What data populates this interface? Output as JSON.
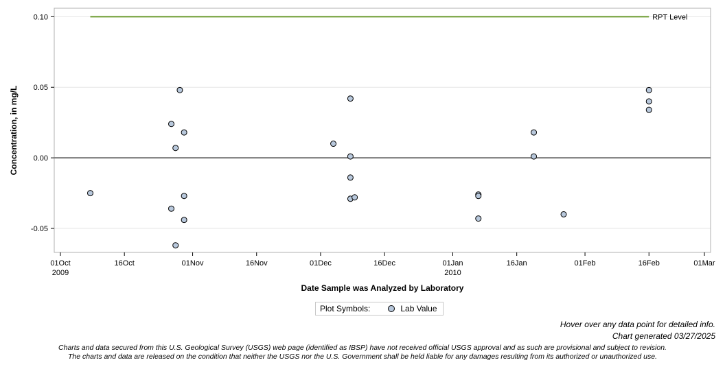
{
  "chart_data": {
    "type": "scatter",
    "xlabel": "Date Sample was Analyzed by Laboratory",
    "ylabel": "Concentration, in mg/L",
    "xlim": [
      "2009-10-01",
      "2010-03-01"
    ],
    "ylim": [
      -0.067,
      0.106
    ],
    "x_ticks": [
      {
        "date": "2009-10-01",
        "label": "01Oct",
        "sublabel": "2009"
      },
      {
        "date": "2009-10-16",
        "label": "16Oct",
        "sublabel": ""
      },
      {
        "date": "2009-11-01",
        "label": "01Nov",
        "sublabel": ""
      },
      {
        "date": "2009-11-16",
        "label": "16Nov",
        "sublabel": ""
      },
      {
        "date": "2009-12-01",
        "label": "01Dec",
        "sublabel": ""
      },
      {
        "date": "2009-12-16",
        "label": "16Dec",
        "sublabel": ""
      },
      {
        "date": "2010-01-01",
        "label": "01Jan",
        "sublabel": "2010"
      },
      {
        "date": "2010-01-16",
        "label": "16Jan",
        "sublabel": ""
      },
      {
        "date": "2010-02-01",
        "label": "01Feb",
        "sublabel": ""
      },
      {
        "date": "2010-02-16",
        "label": "16Feb",
        "sublabel": ""
      },
      {
        "date": "2010-03-01",
        "label": "01Mar",
        "sublabel": ""
      }
    ],
    "y_ticks": [
      {
        "value": -0.05,
        "label": "-0.05"
      },
      {
        "value": 0.0,
        "label": "0.00"
      },
      {
        "value": 0.05,
        "label": "0.05"
      },
      {
        "value": 0.1,
        "label": "0.10"
      }
    ],
    "grid": true,
    "zero_line": 0.0,
    "reference_line": {
      "name": "RPT Level",
      "value": 0.1,
      "x_start": "2009-10-08",
      "x_end": "2010-02-16",
      "color": "#6b9a2e"
    },
    "series": [
      {
        "name": "Lab Value",
        "color": "#b8c8dc",
        "points": [
          {
            "x": "2009-10-08",
            "y": -0.025
          },
          {
            "x": "2009-10-27",
            "y": 0.024
          },
          {
            "x": "2009-10-27",
            "y": -0.036
          },
          {
            "x": "2009-10-28",
            "y": 0.007
          },
          {
            "x": "2009-10-28",
            "y": -0.062
          },
          {
            "x": "2009-10-29",
            "y": 0.048
          },
          {
            "x": "2009-10-30",
            "y": 0.018
          },
          {
            "x": "2009-10-30",
            "y": -0.027
          },
          {
            "x": "2009-10-30",
            "y": -0.044
          },
          {
            "x": "2009-12-04",
            "y": 0.01
          },
          {
            "x": "2009-12-08",
            "y": 0.042
          },
          {
            "x": "2009-12-08",
            "y": 0.001
          },
          {
            "x": "2009-12-08",
            "y": -0.014
          },
          {
            "x": "2009-12-08",
            "y": -0.029
          },
          {
            "x": "2009-12-09",
            "y": -0.028
          },
          {
            "x": "2010-01-07",
            "y": -0.026
          },
          {
            "x": "2010-01-07",
            "y": -0.027
          },
          {
            "x": "2010-01-07",
            "y": -0.043
          },
          {
            "x": "2010-01-20",
            "y": 0.018
          },
          {
            "x": "2010-01-20",
            "y": 0.001
          },
          {
            "x": "2010-01-27",
            "y": -0.04
          },
          {
            "x": "2010-02-16",
            "y": 0.048
          },
          {
            "x": "2010-02-16",
            "y": 0.04
          },
          {
            "x": "2010-02-16",
            "y": 0.034
          }
        ]
      }
    ],
    "legend": {
      "title": "Plot Symbols:",
      "placement": "bottom-center"
    }
  },
  "notes": {
    "hover": "Hover over any data point for detailed info.",
    "generated": "Chart generated 03/27/2025"
  },
  "footer": {
    "line1": "Charts and data secured from this U.S. Geological Survey (USGS) web page (identified as IBSP) have not received official USGS approval and as such are provisional and subject to revision.",
    "line2": "The charts and data are released on the condition that neither the USGS nor the U.S. Government shall be held liable for any damages resulting from its authorized or unauthorized use."
  }
}
